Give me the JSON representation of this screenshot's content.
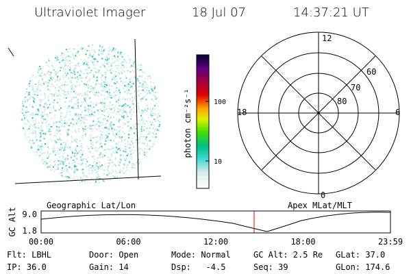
{
  "header": {
    "instrument": "Ultraviolet Imager",
    "date": "18 Jul 07",
    "time": "14:37:21 UT"
  },
  "colorbar": {
    "label": "photon cm⁻²s⁻¹",
    "ticks": [
      "100",
      "10"
    ]
  },
  "polar": {
    "labels": [
      "12",
      "6",
      "0",
      "18",
      "80",
      "70",
      "60"
    ]
  },
  "panels": {
    "left": "Geographic Lat/Lon",
    "right": "Apex MLat/MLT"
  },
  "altitude": {
    "axis_label": "GC Alt",
    "yticks": [
      "9.0",
      "1.8"
    ],
    "xticks": [
      "00:00",
      "06:00",
      "12:00",
      "18:00",
      "23:59"
    ]
  },
  "info": [
    [
      "Flt: LBHL",
      "Door: Open",
      "Mode: Normal",
      "GC Alt: 2.5 Re",
      "GLat: 37.0"
    ],
    [
      "IP: 36.0",
      "Gain: 14",
      "Dsp:   -4.5",
      "Seq: 39",
      "GLon: 174.6"
    ]
  ]
}
